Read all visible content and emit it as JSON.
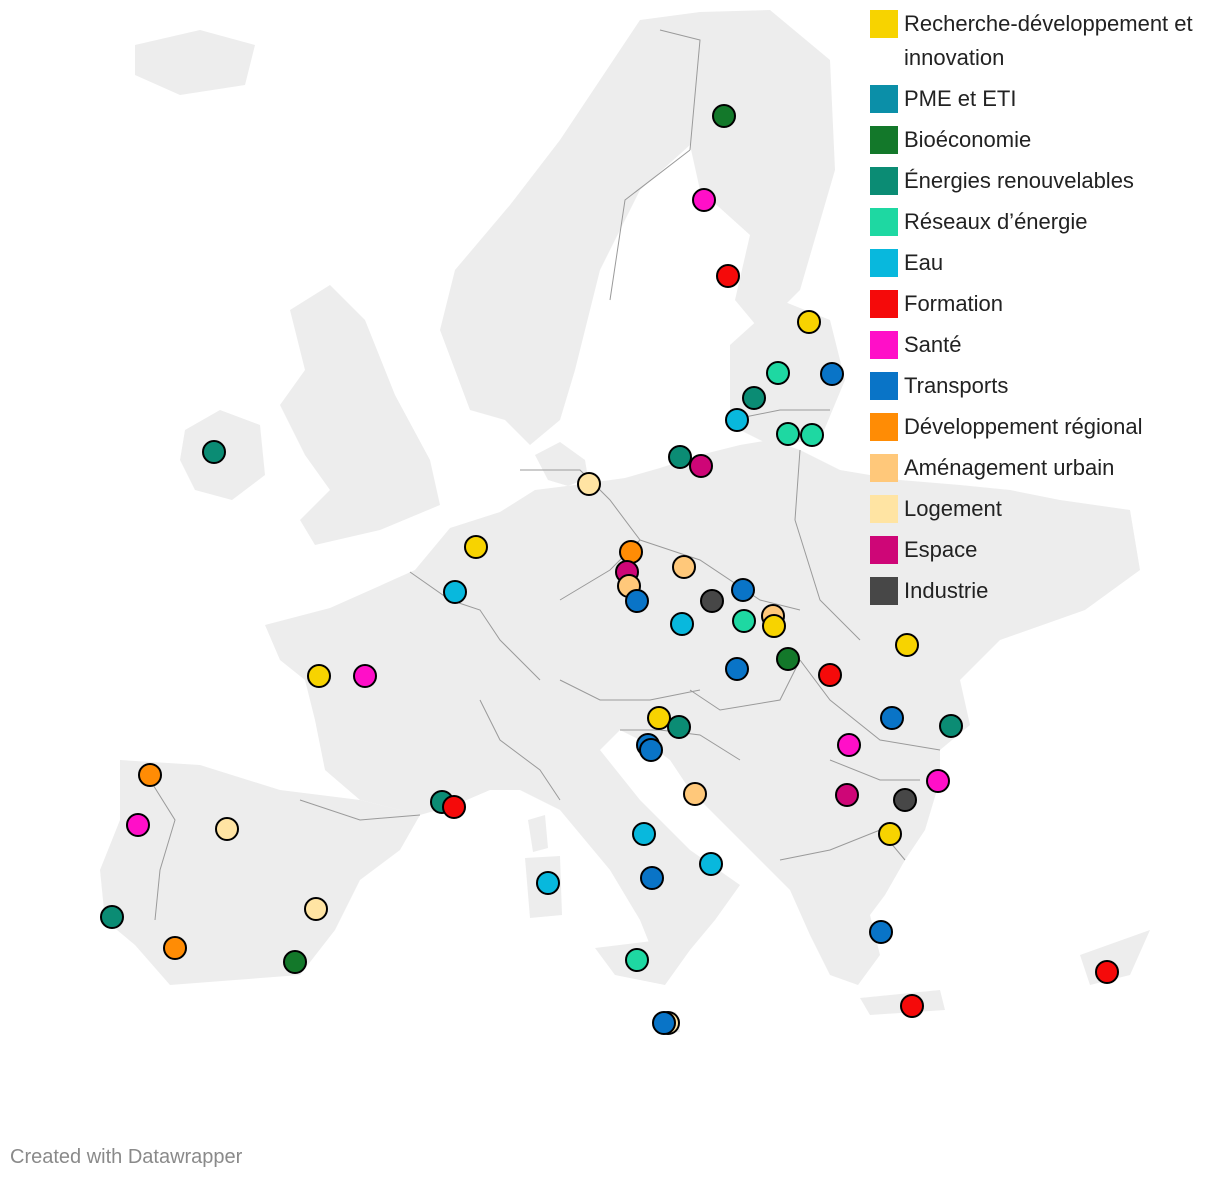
{
  "legend": [
    {
      "label": "Recherche-développement et innovation",
      "color": "#F7D300"
    },
    {
      "label": "PME et ETI",
      "color": "#0B8FA8"
    },
    {
      "label": "Bioéconomie",
      "color": "#13782A"
    },
    {
      "label": "Énergies renouvelables",
      "color": "#0B8C74"
    },
    {
      "label": "Réseaux d’énergie",
      "color": "#1ED8A2"
    },
    {
      "label": "Eau",
      "color": "#08B8DD"
    },
    {
      "label": "Formation",
      "color": "#F50A0A"
    },
    {
      "label": "Santé",
      "color": "#FF0FC8"
    },
    {
      "label": "Transports",
      "color": "#0974C7"
    },
    {
      "label": "Développement régional",
      "color": "#FF8C05"
    },
    {
      "label": "Aménagement urbain",
      "color": "#FFC87A"
    },
    {
      "label": "Logement",
      "color": "#FFE4A3"
    },
    {
      "label": "Espace",
      "color": "#CE0677"
    },
    {
      "label": "Industrie",
      "color": "#474747"
    }
  ],
  "map": {
    "land_color": "#EDEDED",
    "border_color": "#9A9A9A",
    "marker_stroke": "#000000"
  },
  "markers": [
    {
      "category": "Bioéconomie"
    },
    {
      "category": "Santé"
    },
    {
      "category": "Formation"
    },
    {
      "category": "Recherche-développement et innovation"
    },
    {
      "category": "Réseaux d’énergie"
    },
    {
      "category": "Transports"
    },
    {
      "category": "Énergies renouvelables"
    },
    {
      "category": "Eau"
    },
    {
      "category": "Réseaux d’énergie"
    },
    {
      "category": "Réseaux d’énergie"
    },
    {
      "category": "Énergies renouvelables"
    },
    {
      "category": "Énergies renouvelables"
    },
    {
      "category": "Espace"
    },
    {
      "category": "Logement"
    },
    {
      "category": "Recherche-développement et innovation"
    },
    {
      "category": "Eau"
    },
    {
      "category": "Développement régional"
    },
    {
      "category": "Aménagement urbain"
    },
    {
      "category": "Espace"
    },
    {
      "category": "Aménagement urbain"
    },
    {
      "category": "Transports"
    },
    {
      "category": "Transports"
    },
    {
      "category": "Industrie"
    },
    {
      "category": "Eau"
    },
    {
      "category": "Aménagement urbain"
    },
    {
      "category": "Réseaux d’énergie"
    },
    {
      "category": "Recherche-développement et innovation"
    },
    {
      "category": "Recherche-développement et innovation"
    },
    {
      "category": "Recherche-développement et innovation"
    },
    {
      "category": "Santé"
    },
    {
      "category": "Transports"
    },
    {
      "category": "Bioéconomie"
    },
    {
      "category": "Formation"
    },
    {
      "category": "Recherche-développement et innovation"
    },
    {
      "category": "Énergies renouvelables"
    },
    {
      "category": "Transports"
    },
    {
      "category": "Énergies renouvelables"
    },
    {
      "category": "Transports"
    },
    {
      "category": "Transports"
    },
    {
      "category": "Santé"
    },
    {
      "category": "Santé"
    },
    {
      "category": "Espace"
    },
    {
      "category": "Industrie"
    },
    {
      "category": "Recherche-développement et innovation"
    },
    {
      "category": "Aménagement urbain"
    },
    {
      "category": "Développement régional"
    },
    {
      "category": "Santé"
    },
    {
      "category": "Logement"
    },
    {
      "category": "Énergies renouvelables"
    },
    {
      "category": "Formation"
    },
    {
      "category": "Eau"
    },
    {
      "category": "Eau"
    },
    {
      "category": "Eau"
    },
    {
      "category": "Transports"
    },
    {
      "category": "Énergies renouvelables"
    },
    {
      "category": "Logement"
    },
    {
      "category": "Développement régional"
    },
    {
      "category": "Bioéconomie"
    },
    {
      "category": "Réseaux d’énergie"
    },
    {
      "category": "Transports"
    },
    {
      "category": "Logement"
    },
    {
      "category": "Transports"
    },
    {
      "category": "Formation"
    },
    {
      "category": "Formation"
    }
  ],
  "credit": "Created with Datawrapper"
}
